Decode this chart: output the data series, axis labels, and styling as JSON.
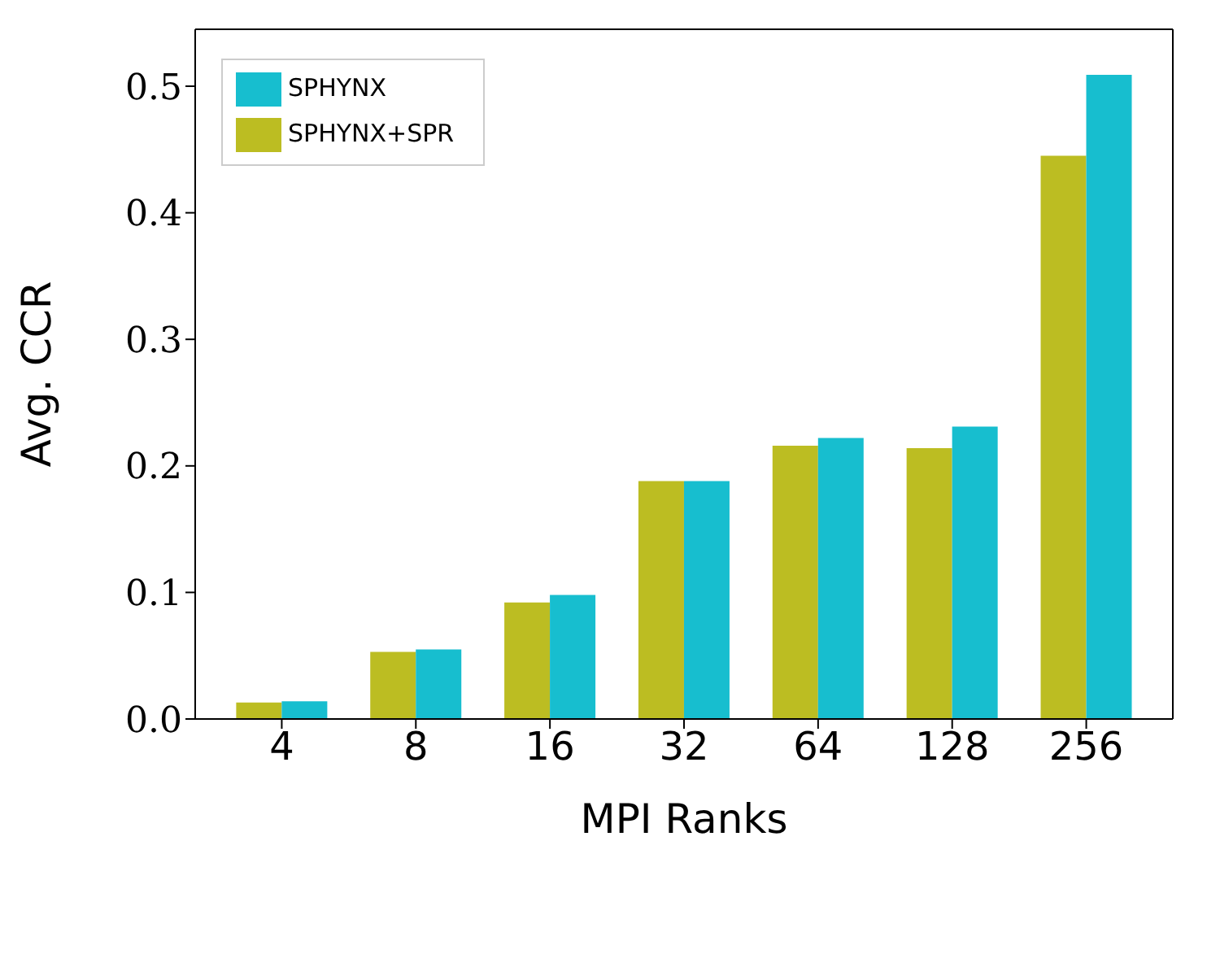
{
  "chart_data": {
    "type": "bar",
    "xlabel": "MPI Ranks",
    "ylabel": "Avg. CCR",
    "categories": [
      "4",
      "8",
      "16",
      "32",
      "64",
      "128",
      "256"
    ],
    "series": [
      {
        "name": "SPHYNX+SPR",
        "color": "#bcbd22",
        "values": [
          0.013,
          0.053,
          0.092,
          0.188,
          0.216,
          0.214,
          0.445
        ]
      },
      {
        "name": "SPHYNX",
        "color": "#17becf",
        "values": [
          0.014,
          0.055,
          0.098,
          0.188,
          0.222,
          0.231,
          0.509
        ]
      }
    ],
    "ylim": [
      0,
      0.545
    ],
    "yticks": [
      {
        "value": 0,
        "label": "0.0"
      },
      {
        "value": 0.1,
        "label": "0.1"
      },
      {
        "value": 0.2,
        "label": "0.2"
      },
      {
        "value": 0.3,
        "label": "0.3"
      },
      {
        "value": 0.4,
        "label": "0.4"
      },
      {
        "value": 0.5,
        "label": "0.5"
      }
    ],
    "grid": false,
    "legend": "top left"
  }
}
